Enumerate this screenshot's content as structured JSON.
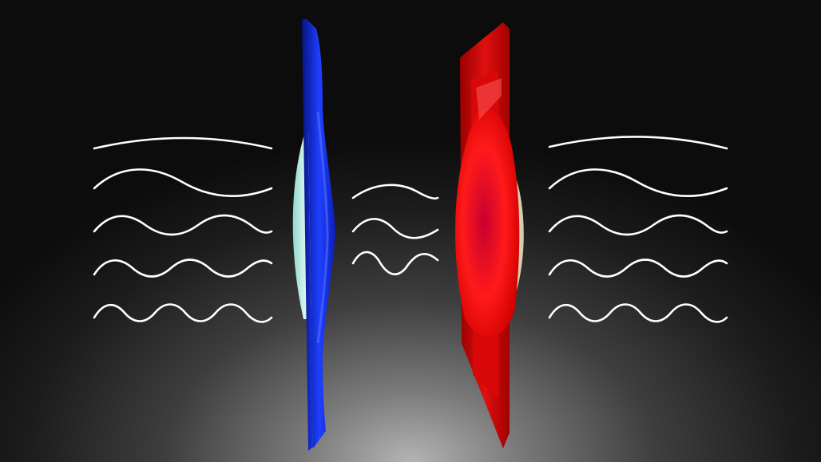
{
  "scene": {
    "background": "#2b2b2b",
    "wave_color": "#ffffff",
    "left_panel": {
      "color": "#1428e6",
      "core_color": "#bfe8e0"
    },
    "right_panel": {
      "color": "#e61414",
      "core_color": "#e8dcc0"
    },
    "wave_groups": [
      {
        "name": "left-waves",
        "count": 5
      },
      {
        "name": "middle-waves",
        "count": 3
      },
      {
        "name": "right-waves",
        "count": 5
      }
    ]
  }
}
